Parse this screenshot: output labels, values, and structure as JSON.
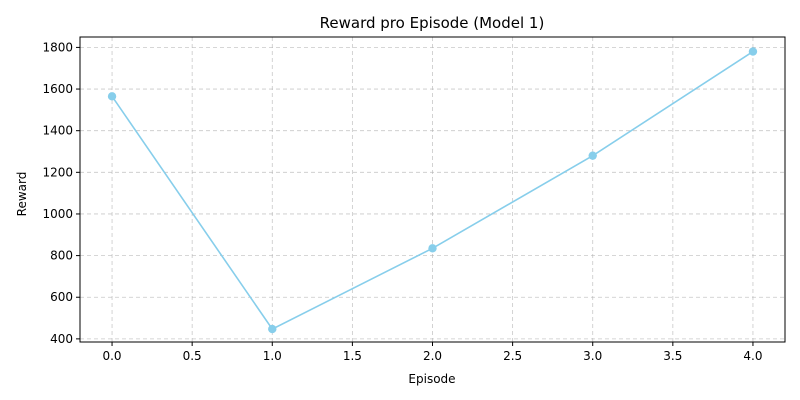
{
  "chart_data": {
    "type": "line",
    "title": "Reward pro Episode (Model 1)",
    "xlabel": "Episode",
    "ylabel": "Reward",
    "x": [
      0,
      1,
      2,
      3,
      4
    ],
    "series": [
      {
        "values": [
          1565,
          447,
          835,
          1280,
          1780
        ],
        "color": "#87ceeb",
        "marker": "circle"
      }
    ],
    "xlim": [
      -0.2,
      4.2
    ],
    "ylim": [
      385,
      1850
    ],
    "xticks": [
      0.0,
      0.5,
      1.0,
      1.5,
      2.0,
      2.5,
      3.0,
      3.5,
      4.0
    ],
    "xtick_labels": [
      "0.0",
      "0.5",
      "1.0",
      "1.5",
      "2.0",
      "2.5",
      "3.0",
      "3.5",
      "4.0"
    ],
    "yticks": [
      400,
      600,
      800,
      1000,
      1200,
      1400,
      1600,
      1800
    ],
    "ytick_labels": [
      "400",
      "600",
      "800",
      "1000",
      "1200",
      "1400",
      "1600",
      "1800"
    ],
    "grid": true,
    "grid_style": "dashed",
    "legend": "none"
  }
}
